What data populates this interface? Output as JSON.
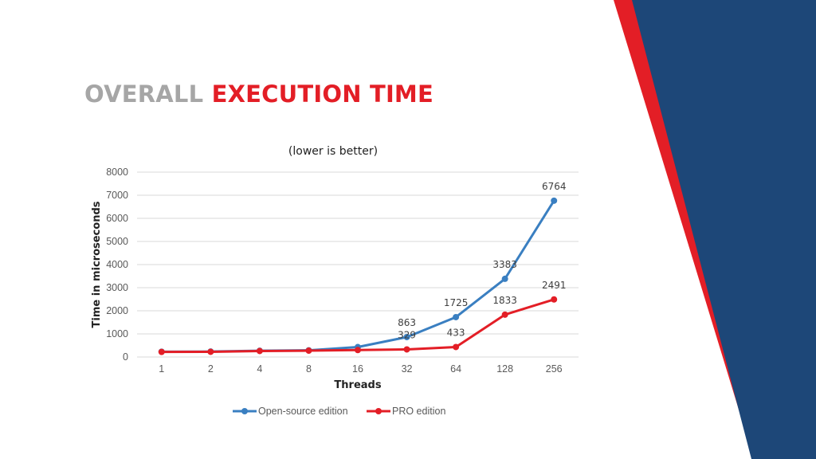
{
  "slide": {
    "title_part1": "OVERALL",
    "title_part2": "EXECUTION TIME",
    "colors": {
      "gray": "#a6a6a6",
      "red": "#e31e26",
      "navy": "#1d4778"
    }
  },
  "chart_data": {
    "type": "line",
    "title": "",
    "subtitle": "(lower is better)",
    "xlabel": "Threads",
    "ylabel": "Time in microseconds",
    "categories": [
      "1",
      "2",
      "4",
      "8",
      "16",
      "32",
      "64",
      "128",
      "256"
    ],
    "ylim": [
      0,
      8000
    ],
    "yticks": [
      0,
      1000,
      2000,
      3000,
      4000,
      5000,
      6000,
      7000,
      8000
    ],
    "grid": true,
    "legend": "bottom",
    "series": [
      {
        "name": "Open-source edition",
        "color": "#3a7fc1",
        "values": [
          230,
          235,
          270,
          290,
          430,
          863,
          1725,
          3383,
          6764
        ],
        "labels": [
          "",
          "",
          "",
          "",
          "",
          "863",
          "1725",
          "3383",
          "6764"
        ]
      },
      {
        "name": "PRO edition",
        "color": "#e31e26",
        "values": [
          220,
          225,
          260,
          275,
          300,
          329,
          433,
          1833,
          2491
        ],
        "labels": [
          "",
          "",
          "",
          "",
          "",
          "329",
          "433",
          "1833",
          "2491"
        ]
      }
    ]
  }
}
